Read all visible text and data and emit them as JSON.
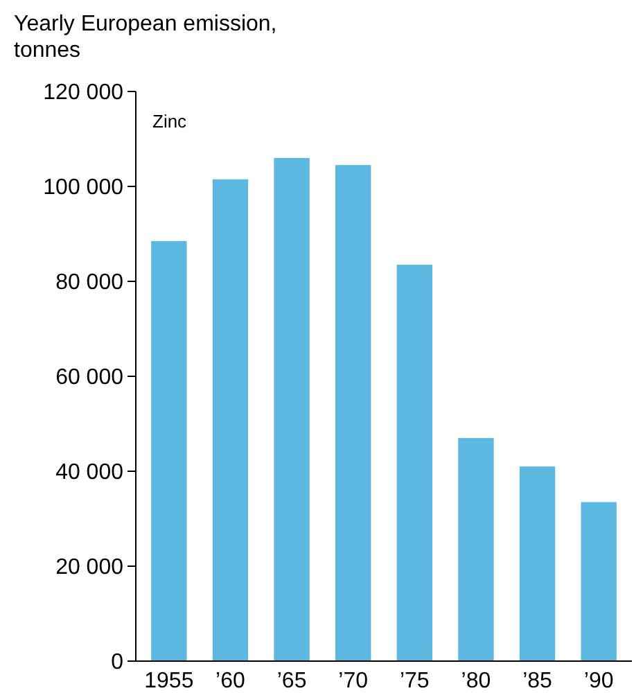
{
  "chart_data": {
    "type": "bar",
    "ylabel": "Yearly European emission, tonnes",
    "annotations": [
      "Zinc"
    ],
    "categories": [
      "1955",
      "’60",
      "’65",
      "’70",
      "’75",
      "’80",
      "’85",
      "’90"
    ],
    "values": [
      88500,
      101500,
      106000,
      104500,
      83500,
      47000,
      41000,
      33500
    ],
    "color": "#5cb8e0",
    "ylim": [
      0,
      120000
    ],
    "yticks": [
      0,
      {
        "value": 20000,
        "label": "20 000"
      },
      {
        "value": 40000,
        "label": "40 000"
      },
      {
        "value": 60000,
        "label": "60 000"
      },
      {
        "value": 80000,
        "label": "80 000"
      },
      {
        "value": 100000,
        "label": "100 000"
      },
      {
        "value": 120000,
        "label": "120 000"
      }
    ],
    "grid": false
  }
}
